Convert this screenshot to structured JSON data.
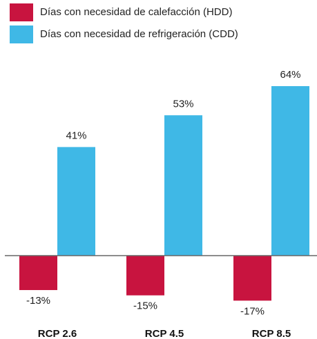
{
  "chart_data": {
    "type": "bar",
    "categories": [
      "RCP 2.6",
      "RCP 4.5",
      "RCP 8.5"
    ],
    "series": [
      {
        "name": "Días con necesidad de calefacción (HDD)",
        "color": "#c8143f",
        "values": [
          -13,
          -15,
          -17
        ],
        "value_labels": [
          "-13%",
          "-15%",
          "-17%"
        ]
      },
      {
        "name": "Días con necesidad de refrigeración (CDD)",
        "color": "#3fb8e6",
        "values": [
          41,
          53,
          64
        ],
        "value_labels": [
          "41%",
          "53%",
          "64%"
        ]
      }
    ],
    "legend": "top-left"
  }
}
